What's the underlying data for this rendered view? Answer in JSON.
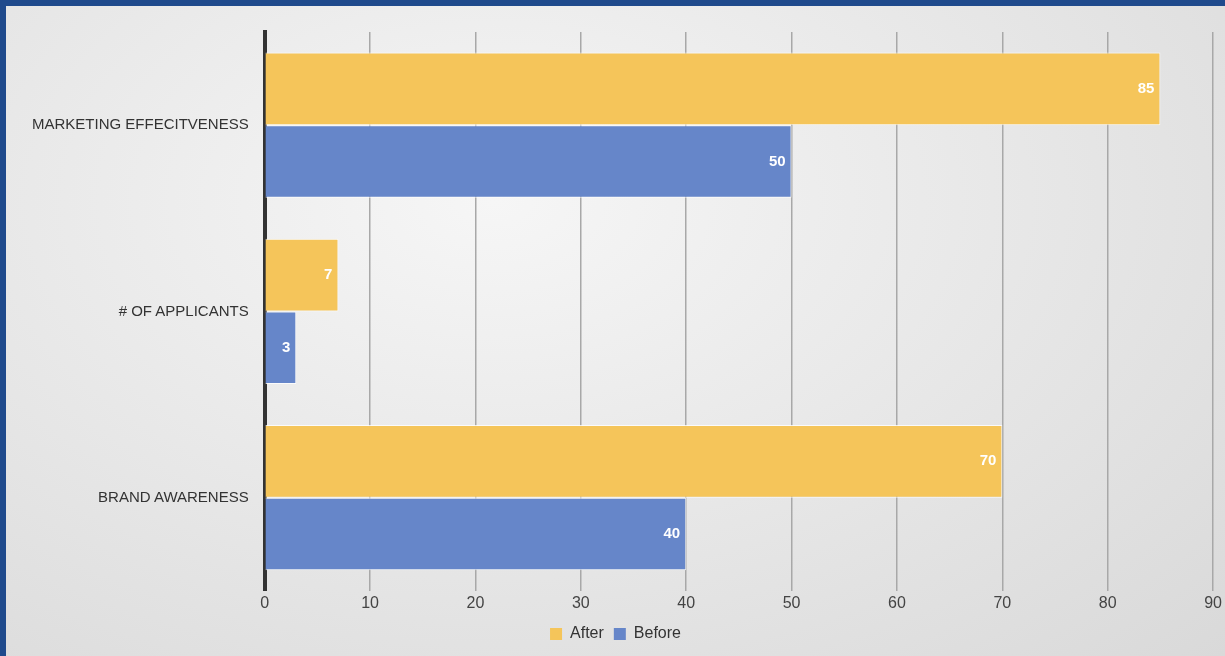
{
  "chart_data": {
    "type": "bar",
    "orientation": "horizontal",
    "categories": [
      "MARKETING EFFECITVENESS",
      "# OF APPLICANTS",
      "BRAND AWARENESS"
    ],
    "series": [
      {
        "name": "After",
        "color": "#f5c55a",
        "values": [
          85,
          7,
          70
        ]
      },
      {
        "name": "Before",
        "color": "#6686c9",
        "values": [
          50,
          3,
          40
        ]
      }
    ],
    "xlim": [
      0,
      90
    ],
    "xticks": [
      0,
      10,
      20,
      30,
      40,
      50,
      60,
      70,
      80,
      90
    ],
    "grid": "x",
    "legend": "bottom",
    "data_labels": true
  }
}
